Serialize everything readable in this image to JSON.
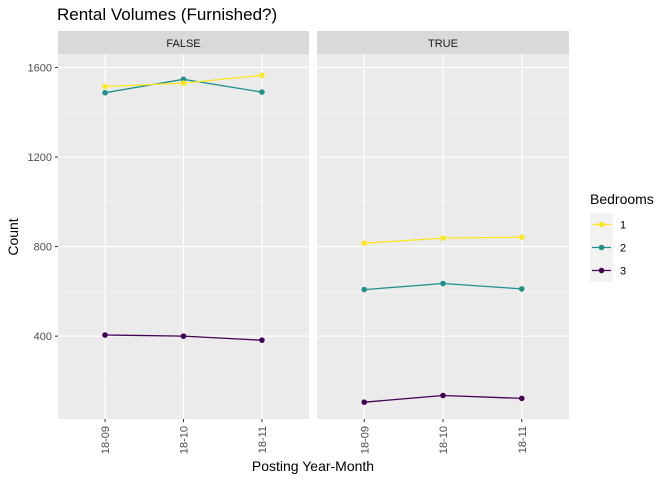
{
  "chart_data": {
    "type": "line",
    "title": "Rental Volumes (Furnished?)",
    "xlabel": "Posting Year-Month",
    "ylabel": "Count",
    "x": [
      "18-09",
      "18-10",
      "18-11"
    ],
    "yticks": [
      400,
      800,
      1200,
      1600
    ],
    "ylim": [
      30,
      1660
    ],
    "grid": true,
    "facet_variable": "Furnished?",
    "legend": {
      "title": "Bedrooms",
      "position": "right"
    },
    "panels": [
      {
        "label": "FALSE",
        "series": [
          {
            "name": "1",
            "values": [
              1515,
              1530,
              1565
            ]
          },
          {
            "name": "2",
            "values": [
              1487,
              1547,
              1490
            ]
          },
          {
            "name": "3",
            "values": [
              405,
              400,
              382
            ]
          }
        ]
      },
      {
        "label": "TRUE",
        "series": [
          {
            "name": "1",
            "values": [
              815,
              838,
              842
            ]
          },
          {
            "name": "2",
            "values": [
              608,
              635,
              611
            ]
          },
          {
            "name": "3",
            "values": [
              105,
              135,
              122
            ]
          }
        ]
      }
    ],
    "colors": {
      "1": "#fde725",
      "2": "#21908c",
      "3": "#440154"
    }
  }
}
